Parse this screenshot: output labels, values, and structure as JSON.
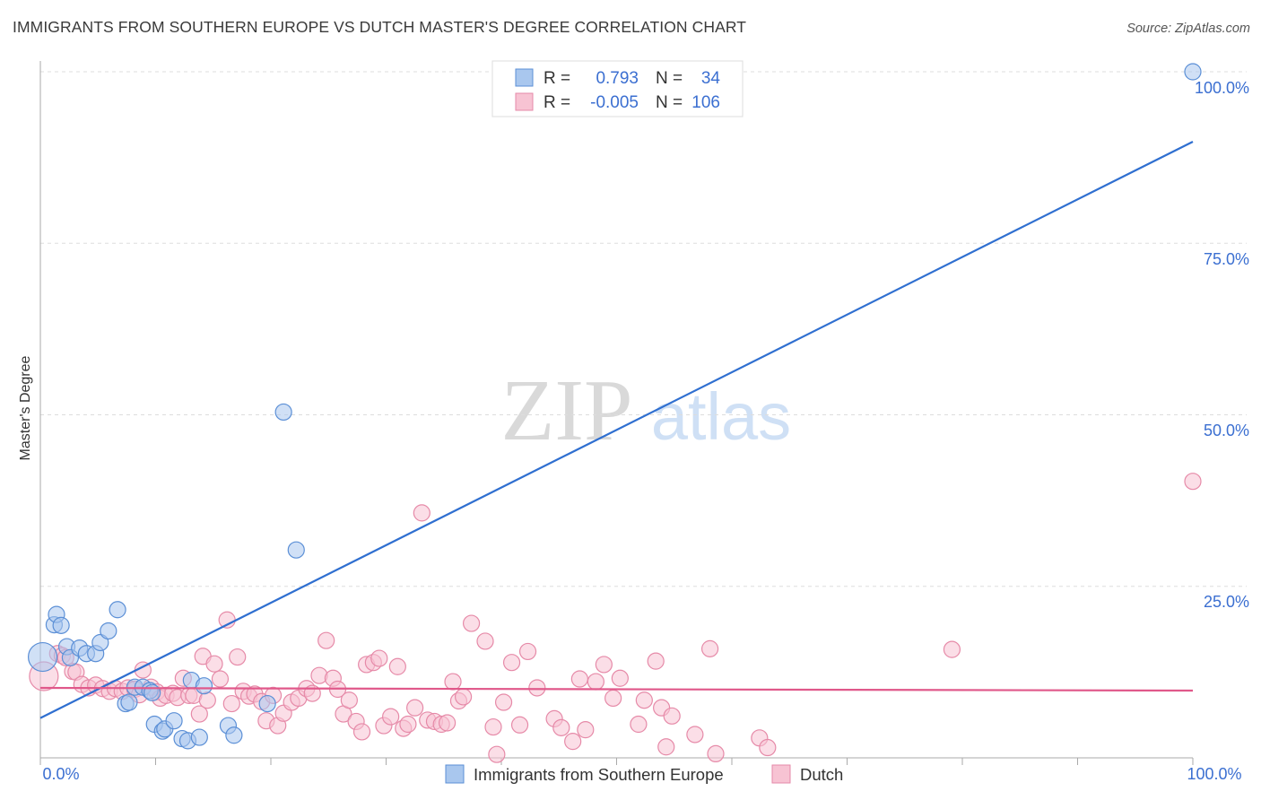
{
  "header": {
    "title": "IMMIGRANTS FROM SOUTHERN EUROPE VS DUTCH MASTER'S DEGREE CORRELATION CHART",
    "source": "Source: ZipAtlas.com"
  },
  "watermark": {
    "zip": "ZIP",
    "atlas": "atlas"
  },
  "colors": {
    "blue_fill": "#a9c7ee",
    "blue_stroke": "#5b8fd6",
    "blue_line": "#2f6fd0",
    "pink_fill": "#f7c3d3",
    "pink_stroke": "#e68aa8",
    "pink_line": "#e0588a",
    "tick_text": "#3b6fd1"
  },
  "legend": {
    "rows": [
      {
        "r_label": "R =",
        "r_value": "0.793",
        "n_label": "N =",
        "n_value": "34"
      },
      {
        "r_label": "R =",
        "r_value": "-0.005",
        "n_label": "N =",
        "n_value": "106"
      }
    ]
  },
  "chart_data": {
    "type": "scatter",
    "xlabel": "",
    "ylabel": "Master's Degree",
    "xlim": [
      0,
      100
    ],
    "ylim": [
      0,
      100
    ],
    "x_tick_labels": [
      "0.0%",
      "100.0%"
    ],
    "y_tick_labels": [
      "100.0%",
      "75.0%",
      "50.0%",
      "25.0%"
    ],
    "legend_placement": "bottom",
    "series": [
      {
        "name": "Immigrants from Southern Europe",
        "color": "blue",
        "r": 0.793,
        "n": 34,
        "trend": {
          "x": [
            0,
            100
          ],
          "y": [
            5.8,
            89.8
          ]
        },
        "points": [
          [
            0.2,
            14.7,
            16
          ],
          [
            1.2,
            19.4,
            9
          ],
          [
            1.4,
            20.9,
            9
          ],
          [
            1.8,
            19.3,
            9
          ],
          [
            2.3,
            16.2,
            9
          ],
          [
            2.6,
            14.6,
            9
          ],
          [
            3.4,
            16.0,
            9
          ],
          [
            4.0,
            15.2,
            9
          ],
          [
            4.8,
            15.2,
            9
          ],
          [
            5.2,
            16.8,
            9
          ],
          [
            5.9,
            18.5,
            9
          ],
          [
            6.7,
            21.6,
            9
          ],
          [
            7.4,
            7.9,
            9
          ],
          [
            7.7,
            8.1,
            9
          ],
          [
            8.2,
            10.3,
            9
          ],
          [
            8.9,
            10.3,
            9
          ],
          [
            9.5,
            9.8,
            9
          ],
          [
            9.7,
            9.5,
            9
          ],
          [
            9.9,
            4.9,
            9
          ],
          [
            10.6,
            3.9,
            9
          ],
          [
            10.8,
            4.2,
            9
          ],
          [
            11.6,
            5.4,
            9
          ],
          [
            12.3,
            2.8,
            9
          ],
          [
            12.8,
            2.5,
            9
          ],
          [
            13.1,
            11.3,
            9
          ],
          [
            13.8,
            3.0,
            9
          ],
          [
            14.2,
            10.5,
            9
          ],
          [
            16.3,
            4.7,
            9
          ],
          [
            16.8,
            3.3,
            9
          ],
          [
            19.7,
            7.9,
            9
          ],
          [
            21.1,
            50.4,
            9
          ],
          [
            22.2,
            30.3,
            9
          ],
          [
            100.0,
            100.0,
            9
          ]
        ]
      },
      {
        "name": "Dutch",
        "color": "pink",
        "r": -0.005,
        "n": 106,
        "trend": {
          "x": [
            0,
            100
          ],
          "y": [
            10.2,
            9.8
          ]
        },
        "points": [
          [
            0.3,
            11.9,
            16
          ],
          [
            1.5,
            15.2,
            9
          ],
          [
            1.9,
            14.9,
            9
          ],
          [
            2.2,
            14.6,
            9
          ],
          [
            2.8,
            12.6,
            9
          ],
          [
            3.1,
            12.5,
            9
          ],
          [
            3.6,
            10.7,
            9
          ],
          [
            4.2,
            10.2,
            9
          ],
          [
            4.8,
            10.6,
            9
          ],
          [
            5.4,
            10.1,
            9
          ],
          [
            6.0,
            9.7,
            9
          ],
          [
            6.5,
            10.1,
            9
          ],
          [
            7.1,
            9.7,
            9
          ],
          [
            7.6,
            10.2,
            9
          ],
          [
            8.2,
            10.0,
            9
          ],
          [
            8.6,
            9.2,
            9
          ],
          [
            8.9,
            12.8,
            9
          ],
          [
            9.6,
            10.3,
            9
          ],
          [
            10.1,
            9.6,
            9
          ],
          [
            10.4,
            8.7,
            9
          ],
          [
            10.9,
            9.1,
            9
          ],
          [
            11.5,
            9.4,
            9
          ],
          [
            11.9,
            8.8,
            9
          ],
          [
            12.4,
            11.6,
            9
          ],
          [
            12.9,
            9.1,
            9
          ],
          [
            13.3,
            9.1,
            9
          ],
          [
            13.8,
            6.4,
            9
          ],
          [
            14.1,
            14.8,
            9
          ],
          [
            14.5,
            8.4,
            9
          ],
          [
            15.1,
            13.7,
            9
          ],
          [
            15.6,
            11.5,
            9
          ],
          [
            16.2,
            20.1,
            9
          ],
          [
            16.6,
            7.9,
            9
          ],
          [
            17.1,
            14.7,
            9
          ],
          [
            17.6,
            9.7,
            9
          ],
          [
            18.1,
            9.0,
            9
          ],
          [
            18.6,
            9.3,
            9
          ],
          [
            19.2,
            8.2,
            9
          ],
          [
            19.6,
            5.4,
            9
          ],
          [
            20.2,
            9.1,
            9
          ],
          [
            20.6,
            4.7,
            9
          ],
          [
            21.1,
            6.5,
            9
          ],
          [
            21.8,
            8.1,
            9
          ],
          [
            22.4,
            8.7,
            9
          ],
          [
            23.1,
            10.1,
            9
          ],
          [
            23.6,
            9.4,
            9
          ],
          [
            24.2,
            12.0,
            9
          ],
          [
            24.8,
            17.1,
            9
          ],
          [
            25.4,
            11.6,
            9
          ],
          [
            25.8,
            10.0,
            9
          ],
          [
            26.3,
            6.4,
            9
          ],
          [
            26.8,
            8.4,
            9
          ],
          [
            27.4,
            5.3,
            9
          ],
          [
            27.9,
            3.8,
            9
          ],
          [
            28.3,
            13.6,
            9
          ],
          [
            28.9,
            13.9,
            9
          ],
          [
            29.4,
            14.5,
            9
          ],
          [
            29.8,
            4.7,
            9
          ],
          [
            30.4,
            6.0,
            9
          ],
          [
            31.0,
            13.3,
            9
          ],
          [
            31.5,
            4.3,
            9
          ],
          [
            31.9,
            4.9,
            9
          ],
          [
            32.5,
            7.3,
            9
          ],
          [
            33.1,
            35.7,
            9
          ],
          [
            33.6,
            5.5,
            9
          ],
          [
            34.2,
            5.3,
            9
          ],
          [
            34.8,
            4.9,
            9
          ],
          [
            35.3,
            5.1,
            9
          ],
          [
            35.8,
            11.1,
            9
          ],
          [
            36.3,
            8.3,
            9
          ],
          [
            36.7,
            8.9,
            9
          ],
          [
            37.4,
            19.6,
            9
          ],
          [
            38.6,
            17.0,
            9
          ],
          [
            39.3,
            4.5,
            9
          ],
          [
            39.6,
            0.5,
            9
          ],
          [
            40.2,
            8.1,
            9
          ],
          [
            40.9,
            13.9,
            9
          ],
          [
            41.6,
            4.8,
            9
          ],
          [
            42.3,
            15.5,
            9
          ],
          [
            43.1,
            10.2,
            9
          ],
          [
            44.6,
            5.7,
            9
          ],
          [
            45.2,
            4.4,
            9
          ],
          [
            46.2,
            2.4,
            9
          ],
          [
            46.8,
            11.5,
            9
          ],
          [
            47.3,
            4.1,
            9
          ],
          [
            48.2,
            11.1,
            9
          ],
          [
            48.9,
            13.6,
            9
          ],
          [
            49.7,
            8.7,
            9
          ],
          [
            50.3,
            11.6,
            9
          ],
          [
            51.9,
            4.9,
            9
          ],
          [
            52.4,
            8.4,
            9
          ],
          [
            53.4,
            14.1,
            9
          ],
          [
            53.9,
            7.3,
            9
          ],
          [
            54.3,
            1.6,
            9
          ],
          [
            54.8,
            6.1,
            9
          ],
          [
            56.8,
            3.4,
            9
          ],
          [
            58.1,
            15.9,
            9
          ],
          [
            58.6,
            0.6,
            9
          ],
          [
            62.4,
            2.9,
            9
          ],
          [
            63.1,
            1.5,
            9
          ],
          [
            79.1,
            15.8,
            9
          ],
          [
            100.0,
            40.3,
            9
          ]
        ]
      }
    ]
  }
}
